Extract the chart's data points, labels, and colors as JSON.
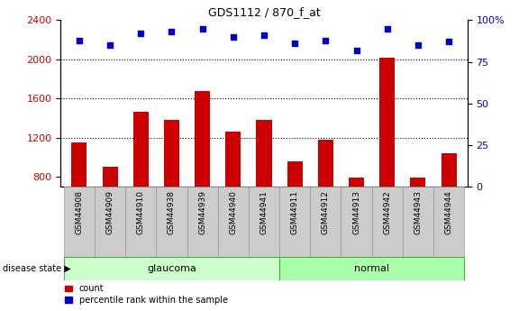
{
  "title": "GDS1112 / 870_f_at",
  "samples": [
    "GSM44908",
    "GSM44909",
    "GSM44910",
    "GSM44938",
    "GSM44939",
    "GSM44940",
    "GSM44941",
    "GSM44911",
    "GSM44912",
    "GSM44913",
    "GSM44942",
    "GSM44943",
    "GSM44944"
  ],
  "counts": [
    1155,
    900,
    1460,
    1380,
    1680,
    1260,
    1380,
    960,
    1175,
    795,
    2020,
    795,
    1040
  ],
  "percentiles": [
    88,
    85,
    92,
    93,
    95,
    90,
    91,
    86,
    88,
    82,
    95,
    85,
    87
  ],
  "groups": [
    "glaucoma",
    "glaucoma",
    "glaucoma",
    "glaucoma",
    "glaucoma",
    "glaucoma",
    "glaucoma",
    "normal",
    "normal",
    "normal",
    "normal",
    "normal",
    "normal"
  ],
  "glaucoma_color": "#ccffcc",
  "normal_color": "#aaffaa",
  "bar_color": "#cc0000",
  "dot_color": "#0000cc",
  "ylim_left": [
    700,
    2400
  ],
  "ylim_right": [
    0,
    100
  ],
  "yticks_left": [
    800,
    1200,
    1600,
    2000,
    2400
  ],
  "yticks_right": [
    0,
    25,
    50,
    75,
    100
  ],
  "grid_values": [
    1200,
    1600,
    2000
  ],
  "background_color": "#ffffff",
  "label_box_color": "#cccccc",
  "label_box_edge": "#999999"
}
